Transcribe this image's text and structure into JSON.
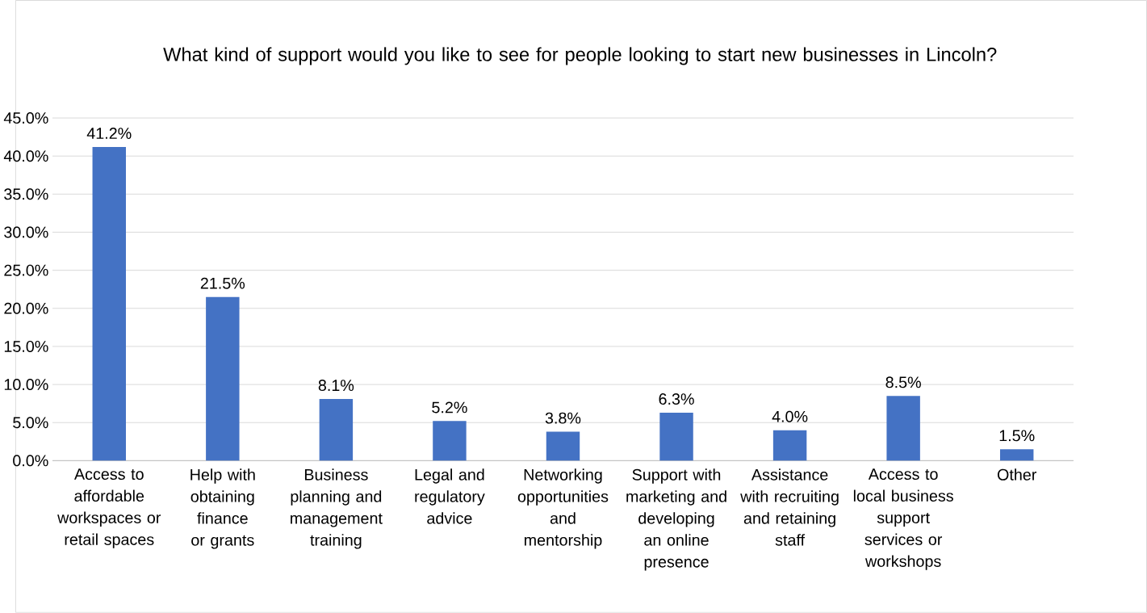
{
  "chart_data": {
    "type": "bar",
    "title": "What kind of support would you like to see for people looking to start new businesses in Lincoln?",
    "categories": [
      "Access to affordable workspaces or retail spaces",
      "Help with obtaining finance or grants",
      "Business planning and management training",
      "Legal and regulatory advice",
      "Networking opportunities and mentorship",
      "Support with marketing and developing an online presence",
      "Assistance with recruiting and retaining staff",
      "Access to local business support services or workshops",
      "Other"
    ],
    "values": [
      41.2,
      21.5,
      8.1,
      5.2,
      3.8,
      6.3,
      4.0,
      8.5,
      1.5
    ],
    "value_labels": [
      "41.2%",
      "21.5%",
      "8.1%",
      "5.2%",
      "3.8%",
      "6.3%",
      "4.0%",
      "8.5%",
      "1.5%"
    ],
    "color": "#4472c4",
    "ylim": [
      0,
      45
    ],
    "yticks": [
      {
        "value": 0,
        "label": "0.0%"
      },
      {
        "value": 5,
        "label": "5.0%"
      },
      {
        "value": 10,
        "label": "10.0%"
      },
      {
        "value": 15,
        "label": "15.0%"
      },
      {
        "value": 20,
        "label": "20.0%"
      },
      {
        "value": 25,
        "label": "25.0%"
      },
      {
        "value": 30,
        "label": "30.0%"
      },
      {
        "value": 35,
        "label": "35.0%"
      },
      {
        "value": 40,
        "label": "40.0%"
      },
      {
        "value": 45,
        "label": "45.0%"
      }
    ],
    "grid": "y"
  }
}
